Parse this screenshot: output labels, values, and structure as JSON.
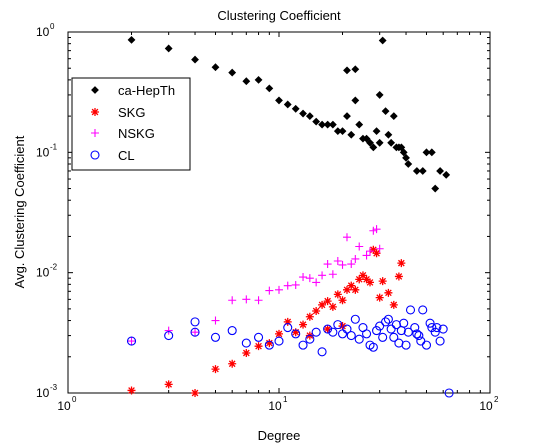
{
  "chart_data": {
    "type": "scatter",
    "title": "Clustering Coefficient",
    "xlabel": "Degree",
    "ylabel": "Avg. Clustering Coefficient",
    "xscale": "log",
    "yscale": "log",
    "xlim": [
      1,
      100
    ],
    "ylim": [
      0.001,
      1
    ],
    "x_ticks": [
      {
        "base": "10",
        "exp": "0"
      },
      {
        "base": "10",
        "exp": "1"
      },
      {
        "base": "10",
        "exp": "2"
      }
    ],
    "y_ticks": [
      {
        "base": "10",
        "exp": "-3"
      },
      {
        "base": "10",
        "exp": "-2"
      },
      {
        "base": "10",
        "exp": "-1"
      },
      {
        "base": "10",
        "exp": "0"
      }
    ],
    "legend": {
      "position": "upper-left",
      "entries": [
        "ca-HepTh",
        "SKG",
        "NSKG",
        "CL"
      ]
    },
    "series": [
      {
        "name": "ca-HepTh",
        "marker": "diamond",
        "color": "#000000",
        "points": [
          [
            2,
            0.86
          ],
          [
            3,
            0.73
          ],
          [
            4,
            0.59
          ],
          [
            5,
            0.51
          ],
          [
            6,
            0.46
          ],
          [
            7,
            0.39
          ],
          [
            8,
            0.4
          ],
          [
            9,
            0.34
          ],
          [
            10,
            0.27
          ],
          [
            11,
            0.25
          ],
          [
            12,
            0.23
          ],
          [
            13,
            0.21
          ],
          [
            14,
            0.2
          ],
          [
            15,
            0.18
          ],
          [
            16,
            0.17
          ],
          [
            17,
            0.17
          ],
          [
            18,
            0.17
          ],
          [
            19,
            0.15
          ],
          [
            20,
            0.15
          ],
          [
            21,
            0.2
          ],
          [
            21,
            0.48
          ],
          [
            22,
            0.14
          ],
          [
            23,
            0.49
          ],
          [
            23,
            0.27
          ],
          [
            24,
            0.17
          ],
          [
            25,
            0.13
          ],
          [
            26,
            0.13
          ],
          [
            27,
            0.12
          ],
          [
            28,
            0.11
          ],
          [
            29,
            0.15
          ],
          [
            30,
            0.12
          ],
          [
            30,
            0.3
          ],
          [
            31,
            0.85
          ],
          [
            32,
            0.22
          ],
          [
            33,
            0.14
          ],
          [
            34,
            0.12
          ],
          [
            35,
            0.2
          ],
          [
            36,
            0.11
          ],
          [
            37,
            0.11
          ],
          [
            38,
            0.11
          ],
          [
            39,
            0.1
          ],
          [
            40,
            0.09
          ],
          [
            41,
            0.08
          ],
          [
            45,
            0.07
          ],
          [
            48,
            0.07
          ],
          [
            50,
            0.1
          ],
          [
            53,
            0.1
          ],
          [
            55,
            0.05
          ],
          [
            58,
            0.07
          ],
          [
            62,
            0.065
          ]
        ]
      },
      {
        "name": "SKG",
        "marker": "asterisk",
        "color": "#ff0000",
        "points": [
          [
            2,
            0.00105
          ],
          [
            3,
            0.00118
          ],
          [
            4,
            0.001
          ],
          [
            5,
            0.00158
          ],
          [
            6,
            0.00175
          ],
          [
            7,
            0.00215
          ],
          [
            8,
            0.00245
          ],
          [
            9,
            0.0026
          ],
          [
            10,
            0.0031
          ],
          [
            11,
            0.0039
          ],
          [
            12,
            0.0032
          ],
          [
            13,
            0.0037
          ],
          [
            14,
            0.0043
          ],
          [
            15,
            0.0048
          ],
          [
            16,
            0.0054
          ],
          [
            17,
            0.0058
          ],
          [
            18,
            0.0052
          ],
          [
            19,
            0.0066
          ],
          [
            20,
            0.0059
          ],
          [
            21,
            0.0072
          ],
          [
            22,
            0.0078
          ],
          [
            23,
            0.0072
          ],
          [
            24,
            0.0088
          ],
          [
            25,
            0.0095
          ],
          [
            26,
            0.0088
          ],
          [
            27,
            0.0083
          ],
          [
            28,
            0.0155
          ],
          [
            29,
            0.0145
          ],
          [
            30,
            0.0062
          ],
          [
            31,
            0.0085
          ],
          [
            33,
            0.0068
          ],
          [
            35,
            0.0054
          ],
          [
            37,
            0.0093
          ],
          [
            38,
            0.012
          ],
          [
            14,
            0.003
          ],
          [
            17,
            0.0034
          ],
          [
            20,
            0.0036
          ]
        ]
      },
      {
        "name": "NSKG",
        "marker": "plus",
        "color": "#ff00ff",
        "points": [
          [
            2,
            0.0027
          ],
          [
            3,
            0.0033
          ],
          [
            4,
            0.0032
          ],
          [
            5,
            0.004
          ],
          [
            6,
            0.0059
          ],
          [
            7,
            0.006
          ],
          [
            8,
            0.0059
          ],
          [
            9,
            0.0071
          ],
          [
            10,
            0.0072
          ],
          [
            11,
            0.0078
          ],
          [
            12,
            0.0079
          ],
          [
            13,
            0.0092
          ],
          [
            14,
            0.009
          ],
          [
            15,
            0.0083
          ],
          [
            16,
            0.0095
          ],
          [
            17,
            0.0118
          ],
          [
            18,
            0.0097
          ],
          [
            19,
            0.0125
          ],
          [
            20,
            0.0116
          ],
          [
            21,
            0.0197
          ],
          [
            22,
            0.0118
          ],
          [
            23,
            0.013
          ],
          [
            24,
            0.0165
          ],
          [
            26,
            0.0139
          ],
          [
            27,
            0.0151
          ],
          [
            28,
            0.0223
          ],
          [
            29,
            0.023
          ],
          [
            30,
            0.0158
          ]
        ]
      },
      {
        "name": "CL",
        "marker": "circle",
        "color": "#0000ff",
        "points": [
          [
            2,
            0.0027
          ],
          [
            3,
            0.003
          ],
          [
            4,
            0.0039
          ],
          [
            4,
            0.0032
          ],
          [
            5,
            0.0029
          ],
          [
            6,
            0.0033
          ],
          [
            7,
            0.0026
          ],
          [
            8,
            0.0029
          ],
          [
            9,
            0.0025
          ],
          [
            10,
            0.0027
          ],
          [
            11,
            0.0035
          ],
          [
            12,
            0.0031
          ],
          [
            13,
            0.0025
          ],
          [
            14,
            0.0028
          ],
          [
            15,
            0.0032
          ],
          [
            16,
            0.0022
          ],
          [
            17,
            0.0034
          ],
          [
            18,
            0.0032
          ],
          [
            19,
            0.0037
          ],
          [
            20,
            0.0031
          ],
          [
            21,
            0.0034
          ],
          [
            22,
            0.003
          ],
          [
            23,
            0.0041
          ],
          [
            24,
            0.0028
          ],
          [
            25,
            0.0035
          ],
          [
            26,
            0.0031
          ],
          [
            27,
            0.0025
          ],
          [
            28,
            0.0024
          ],
          [
            29,
            0.0033
          ],
          [
            30,
            0.0036
          ],
          [
            31,
            0.0029
          ],
          [
            32,
            0.0039
          ],
          [
            33,
            0.0041
          ],
          [
            34,
            0.0034
          ],
          [
            35,
            0.0029
          ],
          [
            36,
            0.0037
          ],
          [
            37,
            0.0026
          ],
          [
            38,
            0.0033
          ],
          [
            39,
            0.0038
          ],
          [
            40,
            0.0025
          ],
          [
            41,
            0.0032
          ],
          [
            42,
            0.0049
          ],
          [
            44,
            0.0035
          ],
          [
            45,
            0.0031
          ],
          [
            46,
            0.003
          ],
          [
            47,
            0.0027
          ],
          [
            48,
            0.0049
          ],
          [
            50,
            0.0025
          ],
          [
            52,
            0.0038
          ],
          [
            53,
            0.0035
          ],
          [
            55,
            0.0032
          ],
          [
            56,
            0.0035
          ],
          [
            58,
            0.0027
          ],
          [
            60,
            0.0034
          ],
          [
            64,
            0.001
          ]
        ]
      }
    ]
  }
}
